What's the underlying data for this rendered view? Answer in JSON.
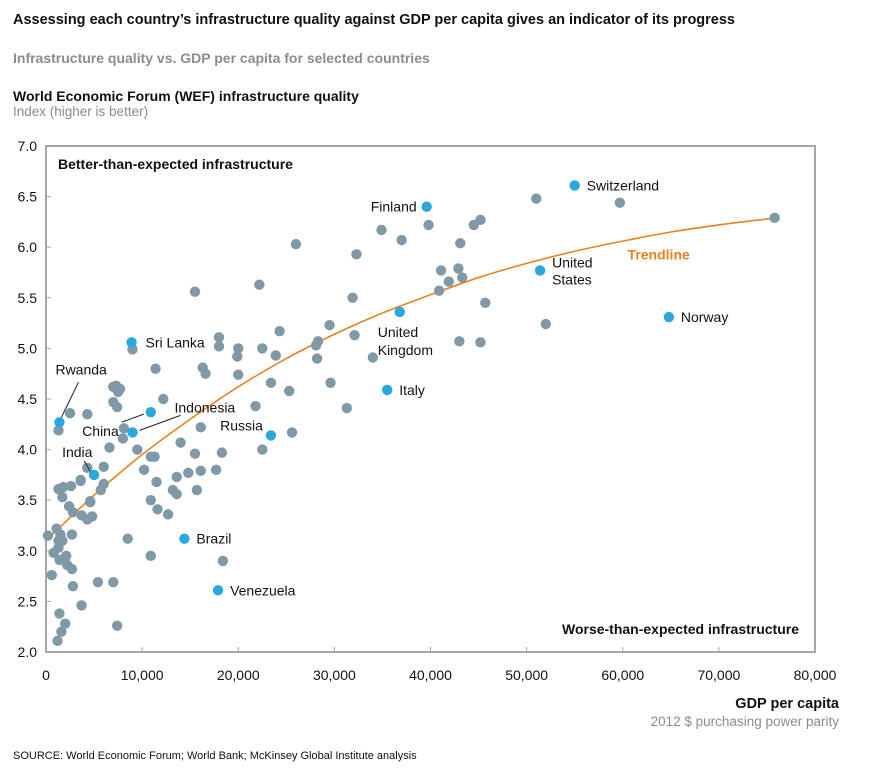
{
  "header": {
    "title": "Assessing each country’s infrastructure quality against GDP per capita gives an indicator of its progress",
    "subtitle": "Infrastructure quality vs. GDP per capita for selected countries",
    "y_title": "World Economic Forum (WEF) infrastructure quality",
    "y_unit": "Index (higher is better)",
    "x_title": "GDP per capita",
    "x_unit": "2012 $ purchasing power parity"
  },
  "footer": {
    "source": "SOURCE: World Economic Forum; World Bank; McKinsey Global Institute analysis"
  },
  "colors": {
    "other_point": "#7f9aa6",
    "highlight_point": "#29a8e0",
    "trendline": "#e8821e",
    "trend_label": "#e8821e",
    "axis": "#a6a6a6"
  },
  "chart_data": {
    "type": "scatter",
    "title": "Infrastructure quality vs. GDP per capita for selected countries",
    "xlabel": "GDP per capita (2012 $ purchasing power parity)",
    "ylabel": "World Economic Forum (WEF) infrastructure quality — Index (higher is better)",
    "xlim": [
      0,
      80000
    ],
    "ylim": [
      2.0,
      7.0
    ],
    "x_ticks": [
      0,
      10000,
      20000,
      30000,
      40000,
      50000,
      60000,
      70000,
      80000
    ],
    "x_tick_labels": [
      "0",
      "10,000",
      "20,000",
      "30,000",
      "40,000",
      "50,000",
      "60,000",
      "70,000",
      "80,000"
    ],
    "y_ticks": [
      2.0,
      2.5,
      3.0,
      3.5,
      4.0,
      4.5,
      5.0,
      5.5,
      6.0,
      6.5,
      7.0
    ],
    "y_tick_labels": [
      "2.0",
      "2.5",
      "3.0",
      "3.5",
      "4.0",
      "4.5",
      "5.0",
      "5.5",
      "6.0",
      "6.5",
      "7.0"
    ],
    "grid": false,
    "annotations": [
      {
        "text": "Better-than-expected infrastructure",
        "position": "top-left"
      },
      {
        "text": "Worse-than-expected infrastructure",
        "position": "bottom-right"
      },
      {
        "text": "Trendline",
        "position": "along trendline, right"
      }
    ],
    "trendline": {
      "name": "Trendline",
      "x": [
        0,
        5000,
        10000,
        15000,
        20000,
        25000,
        30000,
        35000,
        40000,
        45000,
        50000,
        55000,
        60000,
        65000,
        70000,
        76000
      ],
      "y": [
        3.1,
        3.55,
        3.95,
        4.3,
        4.62,
        4.9,
        5.14,
        5.35,
        5.53,
        5.7,
        5.84,
        5.96,
        6.06,
        6.15,
        6.22,
        6.29
      ]
    },
    "highlighted": [
      {
        "name": "Switzerland",
        "x": 55000,
        "y": 6.61,
        "label_side": "right"
      },
      {
        "name": "Finland",
        "x": 39600,
        "y": 6.4,
        "label_side": "left"
      },
      {
        "name": "United States",
        "x": 51400,
        "y": 5.77,
        "label_side": "right-2line"
      },
      {
        "name": "Norway",
        "x": 64800,
        "y": 5.31,
        "label_side": "right"
      },
      {
        "name": "United Kingdom",
        "x": 36800,
        "y": 5.36,
        "label_side": "below"
      },
      {
        "name": "Italy",
        "x": 35500,
        "y": 4.59,
        "label_side": "right"
      },
      {
        "name": "Sri Lanka",
        "x": 8900,
        "y": 5.06,
        "label_side": "right"
      },
      {
        "name": "Russia",
        "x": 23400,
        "y": 4.14,
        "label_side": "above-left"
      },
      {
        "name": "Indonesia",
        "x": 9000,
        "y": 4.17,
        "label_side": "leader"
      },
      {
        "name": "China",
        "x": 10900,
        "y": 4.37,
        "label_side": "leader"
      },
      {
        "name": "Rwanda",
        "x": 1400,
        "y": 4.27,
        "label_side": "leader"
      },
      {
        "name": "India",
        "x": 5000,
        "y": 3.75,
        "label_side": "leader"
      },
      {
        "name": "Brazil",
        "x": 14400,
        "y": 3.12,
        "label_side": "right"
      },
      {
        "name": "Venezuela",
        "x": 17900,
        "y": 2.61,
        "label_side": "right"
      }
    ],
    "others": [
      [
        1300,
        4.19
      ],
      [
        2500,
        4.36
      ],
      [
        4300,
        4.35
      ],
      [
        1700,
        3.53
      ],
      [
        1300,
        3.61
      ],
      [
        1800,
        3.63
      ],
      [
        2600,
        3.64
      ],
      [
        2400,
        3.44
      ],
      [
        2800,
        3.38
      ],
      [
        3700,
        3.35
      ],
      [
        4300,
        3.31
      ],
      [
        4800,
        3.34
      ],
      [
        4600,
        3.48
      ],
      [
        3600,
        3.69
      ],
      [
        4300,
        3.82
      ],
      [
        6000,
        3.83
      ],
      [
        6600,
        4.02
      ],
      [
        5700,
        3.6
      ],
      [
        6000,
        3.66
      ],
      [
        3600,
        3.7
      ],
      [
        4600,
        3.49
      ],
      [
        7000,
        4.62
      ],
      [
        7300,
        4.63
      ],
      [
        7500,
        4.57
      ],
      [
        7000,
        4.47
      ],
      [
        7400,
        4.42
      ],
      [
        7700,
        4.6
      ],
      [
        9000,
        4.99
      ],
      [
        11400,
        4.8
      ],
      [
        12200,
        4.5
      ],
      [
        8100,
        4.21
      ],
      [
        8000,
        4.11
      ],
      [
        9500,
        4.0
      ],
      [
        10900,
        3.93
      ],
      [
        11300,
        3.93
      ],
      [
        10200,
        3.8
      ],
      [
        11500,
        3.68
      ],
      [
        10900,
        3.5
      ],
      [
        11600,
        3.41
      ],
      [
        12700,
        3.36
      ],
      [
        13200,
        3.6
      ],
      [
        13600,
        3.56
      ],
      [
        13600,
        3.73
      ],
      [
        14000,
        4.07
      ],
      [
        14800,
        3.77
      ],
      [
        15500,
        3.96
      ],
      [
        16100,
        3.79
      ],
      [
        15700,
        3.6
      ],
      [
        16100,
        4.22
      ],
      [
        16300,
        4.81
      ],
      [
        16600,
        4.75
      ],
      [
        18000,
        5.02
      ],
      [
        18000,
        5.11
      ],
      [
        15500,
        5.56
      ],
      [
        17700,
        3.8
      ],
      [
        18300,
        3.97
      ],
      [
        20000,
        5.0
      ],
      [
        19900,
        4.92
      ],
      [
        20000,
        4.74
      ],
      [
        21800,
        4.43
      ],
      [
        22500,
        5.0
      ],
      [
        23900,
        4.93
      ],
      [
        24300,
        5.17
      ],
      [
        23400,
        4.66
      ],
      [
        25300,
        4.58
      ],
      [
        25600,
        4.17
      ],
      [
        22500,
        4.0
      ],
      [
        22200,
        5.63
      ],
      [
        26000,
        6.03
      ],
      [
        28300,
        5.07
      ],
      [
        28200,
        4.9
      ],
      [
        28100,
        5.03
      ],
      [
        29500,
        5.23
      ],
      [
        29600,
        4.66
      ],
      [
        31300,
        4.41
      ],
      [
        31900,
        5.5
      ],
      [
        32100,
        5.13
      ],
      [
        32300,
        5.93
      ],
      [
        34000,
        4.91
      ],
      [
        34900,
        6.17
      ],
      [
        37000,
        6.07
      ],
      [
        39800,
        6.22
      ],
      [
        41100,
        5.77
      ],
      [
        40900,
        5.57
      ],
      [
        41900,
        5.66
      ],
      [
        42900,
        5.79
      ],
      [
        43300,
        5.7
      ],
      [
        43100,
        6.04
      ],
      [
        44500,
        6.22
      ],
      [
        45200,
        6.27
      ],
      [
        43000,
        5.07
      ],
      [
        45200,
        5.06
      ],
      [
        45700,
        5.45
      ],
      [
        52000,
        5.24
      ],
      [
        51000,
        6.48
      ],
      [
        59700,
        6.44
      ],
      [
        75800,
        6.29
      ],
      [
        8500,
        3.12
      ],
      [
        10900,
        2.95
      ],
      [
        18400,
        2.9
      ],
      [
        5400,
        2.69
      ],
      [
        7000,
        2.69
      ],
      [
        7400,
        2.26
      ],
      [
        3700,
        2.46
      ],
      [
        200,
        3.15
      ],
      [
        1100,
        3.22
      ],
      [
        1500,
        3.16
      ],
      [
        1300,
        3.1
      ],
      [
        1700,
        3.1
      ],
      [
        2700,
        3.16
      ],
      [
        1300,
        3.03
      ],
      [
        800,
        2.98
      ],
      [
        1400,
        2.91
      ],
      [
        2100,
        2.95
      ],
      [
        2200,
        2.86
      ],
      [
        2700,
        2.82
      ],
      [
        2800,
        2.65
      ],
      [
        600,
        2.76
      ],
      [
        1400,
        2.38
      ],
      [
        2000,
        2.28
      ],
      [
        1600,
        2.2
      ],
      [
        1200,
        2.11
      ]
    ]
  }
}
